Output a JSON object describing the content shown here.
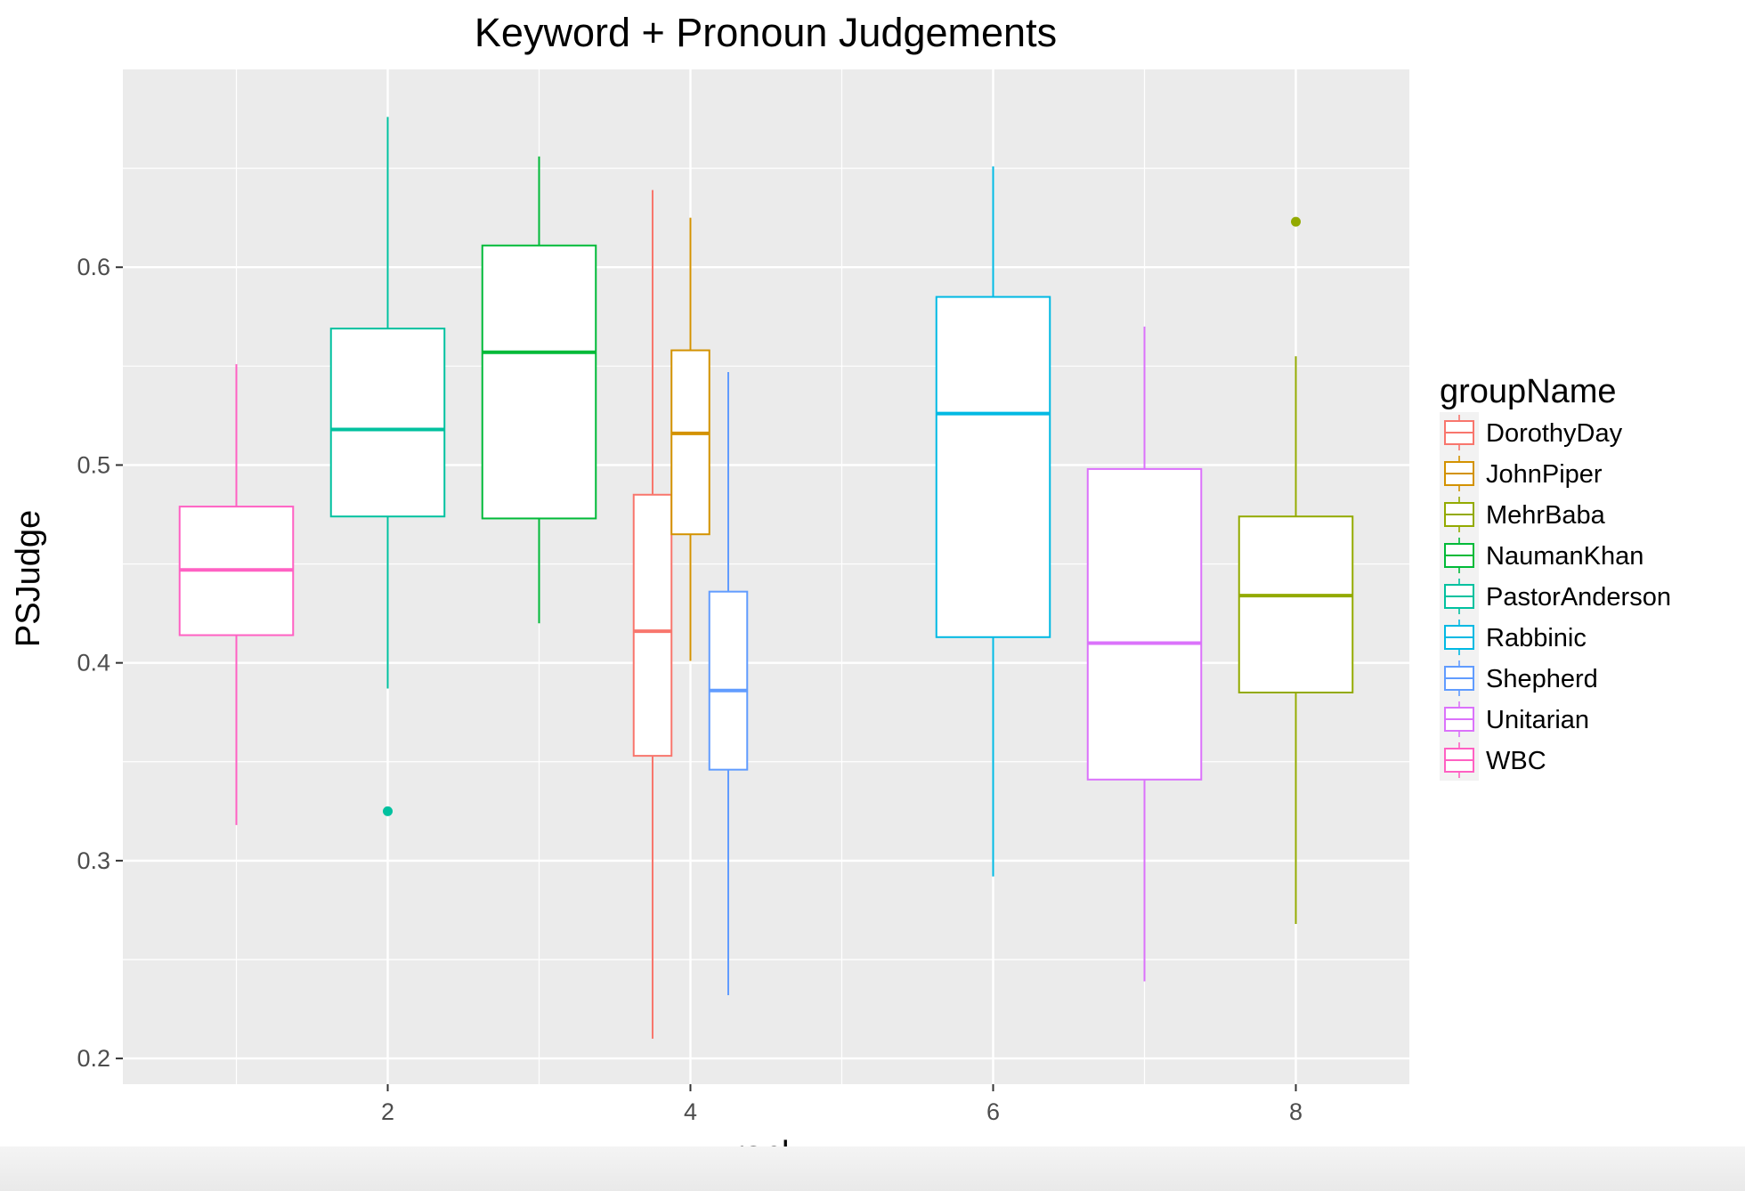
{
  "chart_data": {
    "type": "box",
    "title": "Keyword + Pronoun Judgements",
    "xlabel": "rank",
    "ylabel": "PSJudge",
    "xlim": [
      0.25,
      8.75
    ],
    "ylim": [
      0.187,
      0.7
    ],
    "x_ticks": [
      2,
      4,
      6,
      8
    ],
    "x_tick_labels": [
      "2",
      "4",
      "6",
      "8"
    ],
    "y_ticks": [
      0.2,
      0.3,
      0.4,
      0.5,
      0.6
    ],
    "y_tick_labels": [
      "0.2",
      "0.3",
      "0.4",
      "0.5",
      "0.6"
    ],
    "grid": true,
    "legend_position": "right",
    "legend_title": "groupName",
    "series": [
      {
        "name": "DorothyDay",
        "color": "#F8766D",
        "x": 3.75,
        "width": 0.25,
        "whisker_low": 0.21,
        "q1": 0.353,
        "median": 0.416,
        "q3": 0.485,
        "whisker_high": 0.639,
        "outliers": []
      },
      {
        "name": "JohnPiper",
        "color": "#D39200",
        "x": 4.0,
        "width": 0.25,
        "whisker_low": 0.401,
        "q1": 0.465,
        "median": 0.516,
        "q3": 0.558,
        "whisker_high": 0.625,
        "outliers": []
      },
      {
        "name": "MehrBaba",
        "color": "#93AA00",
        "x": 8.0,
        "width": 0.75,
        "whisker_low": 0.268,
        "q1": 0.385,
        "median": 0.434,
        "q3": 0.474,
        "whisker_high": 0.555,
        "outliers": [
          0.623
        ]
      },
      {
        "name": "NaumanKhan",
        "color": "#00BA38",
        "x": 3.0,
        "width": 0.75,
        "whisker_low": 0.42,
        "q1": 0.473,
        "median": 0.557,
        "q3": 0.611,
        "whisker_high": 0.656,
        "outliers": []
      },
      {
        "name": "PastorAnderson",
        "color": "#00C19F",
        "x": 2.0,
        "width": 0.75,
        "whisker_low": 0.387,
        "q1": 0.474,
        "median": 0.518,
        "q3": 0.569,
        "whisker_high": 0.676,
        "outliers": [
          0.325
        ]
      },
      {
        "name": "Rabbinic",
        "color": "#00B9E3",
        "x": 6.0,
        "width": 0.75,
        "whisker_low": 0.292,
        "q1": 0.413,
        "median": 0.526,
        "q3": 0.585,
        "whisker_high": 0.651,
        "outliers": []
      },
      {
        "name": "Shepherd",
        "color": "#619CFF",
        "x": 4.25,
        "width": 0.25,
        "whisker_low": 0.232,
        "q1": 0.346,
        "median": 0.386,
        "q3": 0.436,
        "whisker_high": 0.547,
        "outliers": []
      },
      {
        "name": "Unitarian",
        "color": "#DB72FB",
        "x": 7.0,
        "width": 0.75,
        "whisker_low": 0.239,
        "q1": 0.341,
        "median": 0.41,
        "q3": 0.498,
        "whisker_high": 0.57,
        "outliers": []
      },
      {
        "name": "WBC",
        "color": "#FF61C3",
        "x": 1.0,
        "width": 0.75,
        "whisker_low": 0.318,
        "q1": 0.414,
        "median": 0.447,
        "q3": 0.479,
        "whisker_high": 0.551,
        "outliers": []
      }
    ]
  }
}
